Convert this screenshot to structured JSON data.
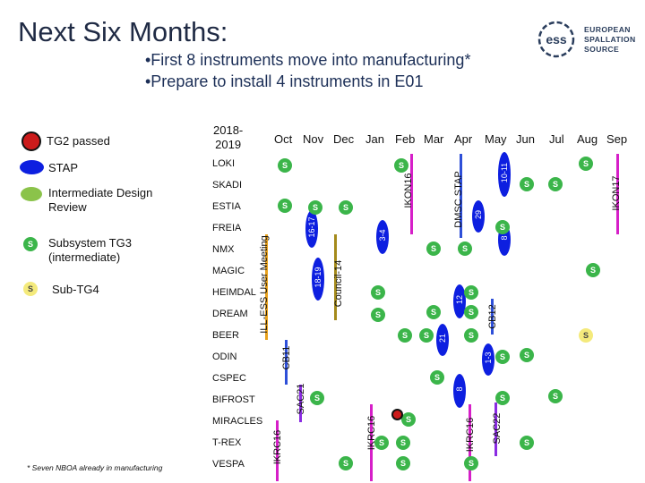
{
  "title": "Next Six Months:",
  "bullets": [
    "•First 8 instruments move into manufacturing*",
    "•Prepare to install 4 instruments in E01"
  ],
  "logo": {
    "line1": "EUROPEAN",
    "line2": "SPALLATION",
    "line3": "SOURCE",
    "mark": "ess"
  },
  "legend": {
    "tg2": "TG2 passed",
    "stap": "STAP",
    "idr": "Intermediate Design Review",
    "tg3": "Subsystem TG3 (intermediate)",
    "subtg4": "Sub-TG4",
    "s": "S"
  },
  "year": "2018-\n2019",
  "months": [
    "Oct",
    "Nov",
    "Dec",
    "Jan",
    "Feb",
    "Mar",
    "Apr",
    "May",
    "Jun",
    "Jul",
    "Aug",
    "Sep"
  ],
  "instruments": [
    "LOKI",
    "SKADI",
    "ESTIA",
    "FREIA",
    "NMX",
    "MAGIC",
    "HEIMDAL",
    "DREAM",
    "BEER",
    "ODIN",
    "CSPEC",
    "BIFROST",
    "MIRACLES",
    "T-REX",
    "VESPA"
  ],
  "footnote": "* Seven NBOA already in manufacturing",
  "events": {
    "ill_ess": "ILL-ESS User Meeting",
    "ikon16": "IKON16",
    "dmsc_stap": "DMSC STAP",
    "ikon17": "IKON17",
    "council": "Council-14",
    "cb11": "CB11",
    "cb12": "CB12",
    "sac21": "SAC21",
    "sac22": "SAC22",
    "ikrc16a": "IKRC16",
    "ikrc16b": "IKRC16",
    "ikrc16c": "IKRC16"
  },
  "oval_labels": {
    "d1617": "16-17",
    "d1819": "18-19",
    "d34": "3-4",
    "d29": "29",
    "d1011": "10-11",
    "d8a": "8",
    "d12": "12",
    "d21": "21",
    "d13": "1-3",
    "d8b": "8"
  },
  "colors": {
    "title": "#1f2a44",
    "s_green": "#3bb54a",
    "s_yellow": "#f4ea7c",
    "stap_blue": "#0d1fe0",
    "idr_green": "#8bc34a",
    "tg2_red": "#cc1b1b",
    "line_orange": "#e8a11c",
    "line_blue": "#2e4fd8",
    "line_magenta": "#d61fc8",
    "line_purple": "#8a2be2",
    "line_olive": "#a48a1b"
  }
}
